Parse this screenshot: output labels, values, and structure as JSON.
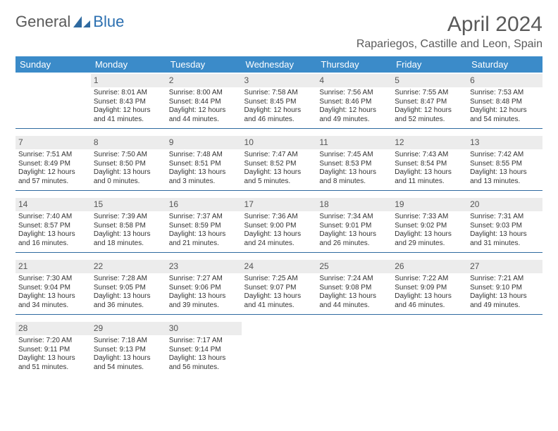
{
  "logo": {
    "text1": "General",
    "text2": "Blue",
    "icon_color": "#2f6aa0"
  },
  "title": "April 2024",
  "location": "Rapariegos, Castille and Leon, Spain",
  "colors": {
    "header_bg": "#3b8bc9",
    "header_text": "#ffffff",
    "day_header_bg": "#ececec",
    "day_header_text": "#555555",
    "body_text": "#333333",
    "rule": "#2f6aa0",
    "title_text": "#5a5a5a"
  },
  "weekdays": [
    "Sunday",
    "Monday",
    "Tuesday",
    "Wednesday",
    "Thursday",
    "Friday",
    "Saturday"
  ],
  "weeks": [
    [
      null,
      {
        "n": "1",
        "sunrise": "Sunrise: 8:01 AM",
        "sunset": "Sunset: 8:43 PM",
        "day1": "Daylight: 12 hours",
        "day2": "and 41 minutes."
      },
      {
        "n": "2",
        "sunrise": "Sunrise: 8:00 AM",
        "sunset": "Sunset: 8:44 PM",
        "day1": "Daylight: 12 hours",
        "day2": "and 44 minutes."
      },
      {
        "n": "3",
        "sunrise": "Sunrise: 7:58 AM",
        "sunset": "Sunset: 8:45 PM",
        "day1": "Daylight: 12 hours",
        "day2": "and 46 minutes."
      },
      {
        "n": "4",
        "sunrise": "Sunrise: 7:56 AM",
        "sunset": "Sunset: 8:46 PM",
        "day1": "Daylight: 12 hours",
        "day2": "and 49 minutes."
      },
      {
        "n": "5",
        "sunrise": "Sunrise: 7:55 AM",
        "sunset": "Sunset: 8:47 PM",
        "day1": "Daylight: 12 hours",
        "day2": "and 52 minutes."
      },
      {
        "n": "6",
        "sunrise": "Sunrise: 7:53 AM",
        "sunset": "Sunset: 8:48 PM",
        "day1": "Daylight: 12 hours",
        "day2": "and 54 minutes."
      }
    ],
    [
      {
        "n": "7",
        "sunrise": "Sunrise: 7:51 AM",
        "sunset": "Sunset: 8:49 PM",
        "day1": "Daylight: 12 hours",
        "day2": "and 57 minutes."
      },
      {
        "n": "8",
        "sunrise": "Sunrise: 7:50 AM",
        "sunset": "Sunset: 8:50 PM",
        "day1": "Daylight: 13 hours",
        "day2": "and 0 minutes."
      },
      {
        "n": "9",
        "sunrise": "Sunrise: 7:48 AM",
        "sunset": "Sunset: 8:51 PM",
        "day1": "Daylight: 13 hours",
        "day2": "and 3 minutes."
      },
      {
        "n": "10",
        "sunrise": "Sunrise: 7:47 AM",
        "sunset": "Sunset: 8:52 PM",
        "day1": "Daylight: 13 hours",
        "day2": "and 5 minutes."
      },
      {
        "n": "11",
        "sunrise": "Sunrise: 7:45 AM",
        "sunset": "Sunset: 8:53 PM",
        "day1": "Daylight: 13 hours",
        "day2": "and 8 minutes."
      },
      {
        "n": "12",
        "sunrise": "Sunrise: 7:43 AM",
        "sunset": "Sunset: 8:54 PM",
        "day1": "Daylight: 13 hours",
        "day2": "and 11 minutes."
      },
      {
        "n": "13",
        "sunrise": "Sunrise: 7:42 AM",
        "sunset": "Sunset: 8:55 PM",
        "day1": "Daylight: 13 hours",
        "day2": "and 13 minutes."
      }
    ],
    [
      {
        "n": "14",
        "sunrise": "Sunrise: 7:40 AM",
        "sunset": "Sunset: 8:57 PM",
        "day1": "Daylight: 13 hours",
        "day2": "and 16 minutes."
      },
      {
        "n": "15",
        "sunrise": "Sunrise: 7:39 AM",
        "sunset": "Sunset: 8:58 PM",
        "day1": "Daylight: 13 hours",
        "day2": "and 18 minutes."
      },
      {
        "n": "16",
        "sunrise": "Sunrise: 7:37 AM",
        "sunset": "Sunset: 8:59 PM",
        "day1": "Daylight: 13 hours",
        "day2": "and 21 minutes."
      },
      {
        "n": "17",
        "sunrise": "Sunrise: 7:36 AM",
        "sunset": "Sunset: 9:00 PM",
        "day1": "Daylight: 13 hours",
        "day2": "and 24 minutes."
      },
      {
        "n": "18",
        "sunrise": "Sunrise: 7:34 AM",
        "sunset": "Sunset: 9:01 PM",
        "day1": "Daylight: 13 hours",
        "day2": "and 26 minutes."
      },
      {
        "n": "19",
        "sunrise": "Sunrise: 7:33 AM",
        "sunset": "Sunset: 9:02 PM",
        "day1": "Daylight: 13 hours",
        "day2": "and 29 minutes."
      },
      {
        "n": "20",
        "sunrise": "Sunrise: 7:31 AM",
        "sunset": "Sunset: 9:03 PM",
        "day1": "Daylight: 13 hours",
        "day2": "and 31 minutes."
      }
    ],
    [
      {
        "n": "21",
        "sunrise": "Sunrise: 7:30 AM",
        "sunset": "Sunset: 9:04 PM",
        "day1": "Daylight: 13 hours",
        "day2": "and 34 minutes."
      },
      {
        "n": "22",
        "sunrise": "Sunrise: 7:28 AM",
        "sunset": "Sunset: 9:05 PM",
        "day1": "Daylight: 13 hours",
        "day2": "and 36 minutes."
      },
      {
        "n": "23",
        "sunrise": "Sunrise: 7:27 AM",
        "sunset": "Sunset: 9:06 PM",
        "day1": "Daylight: 13 hours",
        "day2": "and 39 minutes."
      },
      {
        "n": "24",
        "sunrise": "Sunrise: 7:25 AM",
        "sunset": "Sunset: 9:07 PM",
        "day1": "Daylight: 13 hours",
        "day2": "and 41 minutes."
      },
      {
        "n": "25",
        "sunrise": "Sunrise: 7:24 AM",
        "sunset": "Sunset: 9:08 PM",
        "day1": "Daylight: 13 hours",
        "day2": "and 44 minutes."
      },
      {
        "n": "26",
        "sunrise": "Sunrise: 7:22 AM",
        "sunset": "Sunset: 9:09 PM",
        "day1": "Daylight: 13 hours",
        "day2": "and 46 minutes."
      },
      {
        "n": "27",
        "sunrise": "Sunrise: 7:21 AM",
        "sunset": "Sunset: 9:10 PM",
        "day1": "Daylight: 13 hours",
        "day2": "and 49 minutes."
      }
    ],
    [
      {
        "n": "28",
        "sunrise": "Sunrise: 7:20 AM",
        "sunset": "Sunset: 9:11 PM",
        "day1": "Daylight: 13 hours",
        "day2": "and 51 minutes."
      },
      {
        "n": "29",
        "sunrise": "Sunrise: 7:18 AM",
        "sunset": "Sunset: 9:13 PM",
        "day1": "Daylight: 13 hours",
        "day2": "and 54 minutes."
      },
      {
        "n": "30",
        "sunrise": "Sunrise: 7:17 AM",
        "sunset": "Sunset: 9:14 PM",
        "day1": "Daylight: 13 hours",
        "day2": "and 56 minutes."
      },
      null,
      null,
      null,
      null
    ]
  ]
}
